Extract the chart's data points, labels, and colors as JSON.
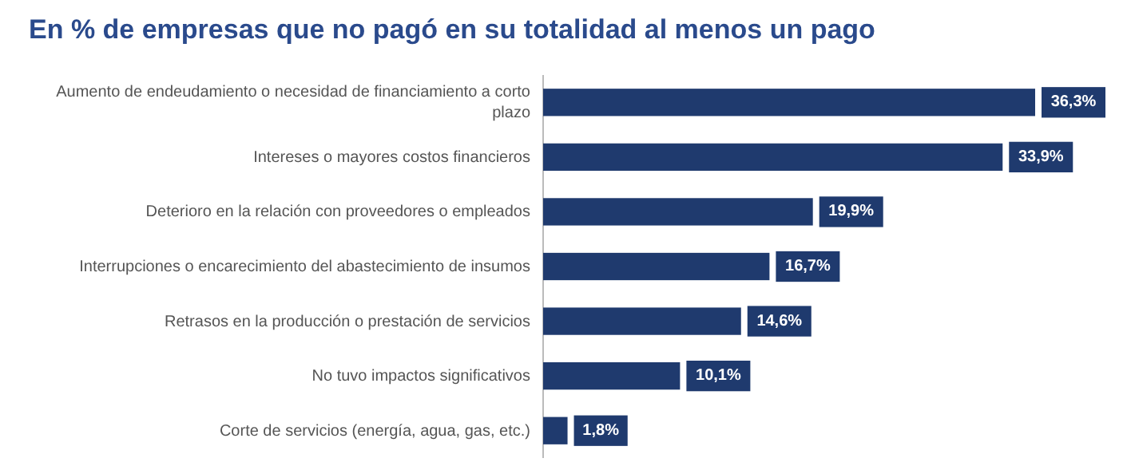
{
  "chart_data": {
    "type": "bar",
    "orientation": "horizontal",
    "title": "En % de empresas que no pagó en su totalidad al menos un pago",
    "categories": [
      "Aumento de endeudamiento o necesidad de financiamiento a corto plazo",
      "Intereses o mayores costos financieros",
      "Deterioro en la relación con proveedores o empleados",
      "Interrupciones o encarecimiento del abastecimiento de insumos",
      "Retrasos en la producción o prestación de servicios",
      "No tuvo impactos significativos",
      "Corte de servicios (energía, agua, gas, etc.)"
    ],
    "values": [
      36.3,
      33.9,
      19.9,
      16.7,
      14.6,
      10.1,
      1.8
    ],
    "value_labels": [
      "36,3%",
      "33,9%",
      "19,9%",
      "16,7%",
      "14,6%",
      "10,1%",
      "1,8%"
    ],
    "color": "#1f3a6e"
  }
}
